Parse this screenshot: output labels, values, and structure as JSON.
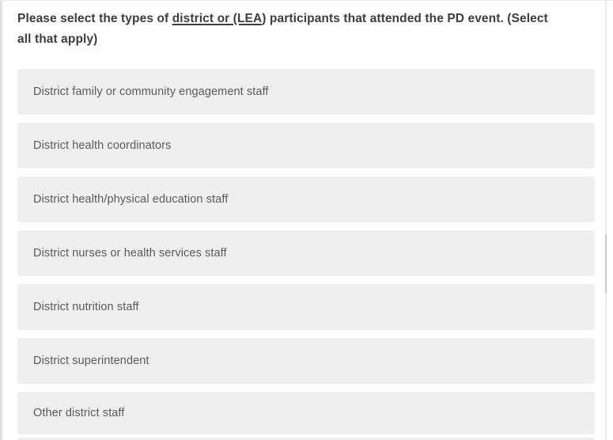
{
  "question": {
    "text_before_link": "Please select the types of ",
    "link_text": "district or (LEA",
    "text_after_link": ") participants that attended the PD event. (Select all that apply)"
  },
  "options": [
    "District family or community engagement staff",
    "District health coordinators",
    "District health/physical education staff",
    "District nurses or health services staff",
    "District nutrition staff",
    "District superintendent",
    "Other district staff"
  ],
  "colors": {
    "option_background": "#efefef",
    "option_text": "#595a5c",
    "question_text": "#3c3d3f",
    "scrollbar_thumb": "#c7ccd4",
    "left_shadow": "#d7d7d7"
  }
}
